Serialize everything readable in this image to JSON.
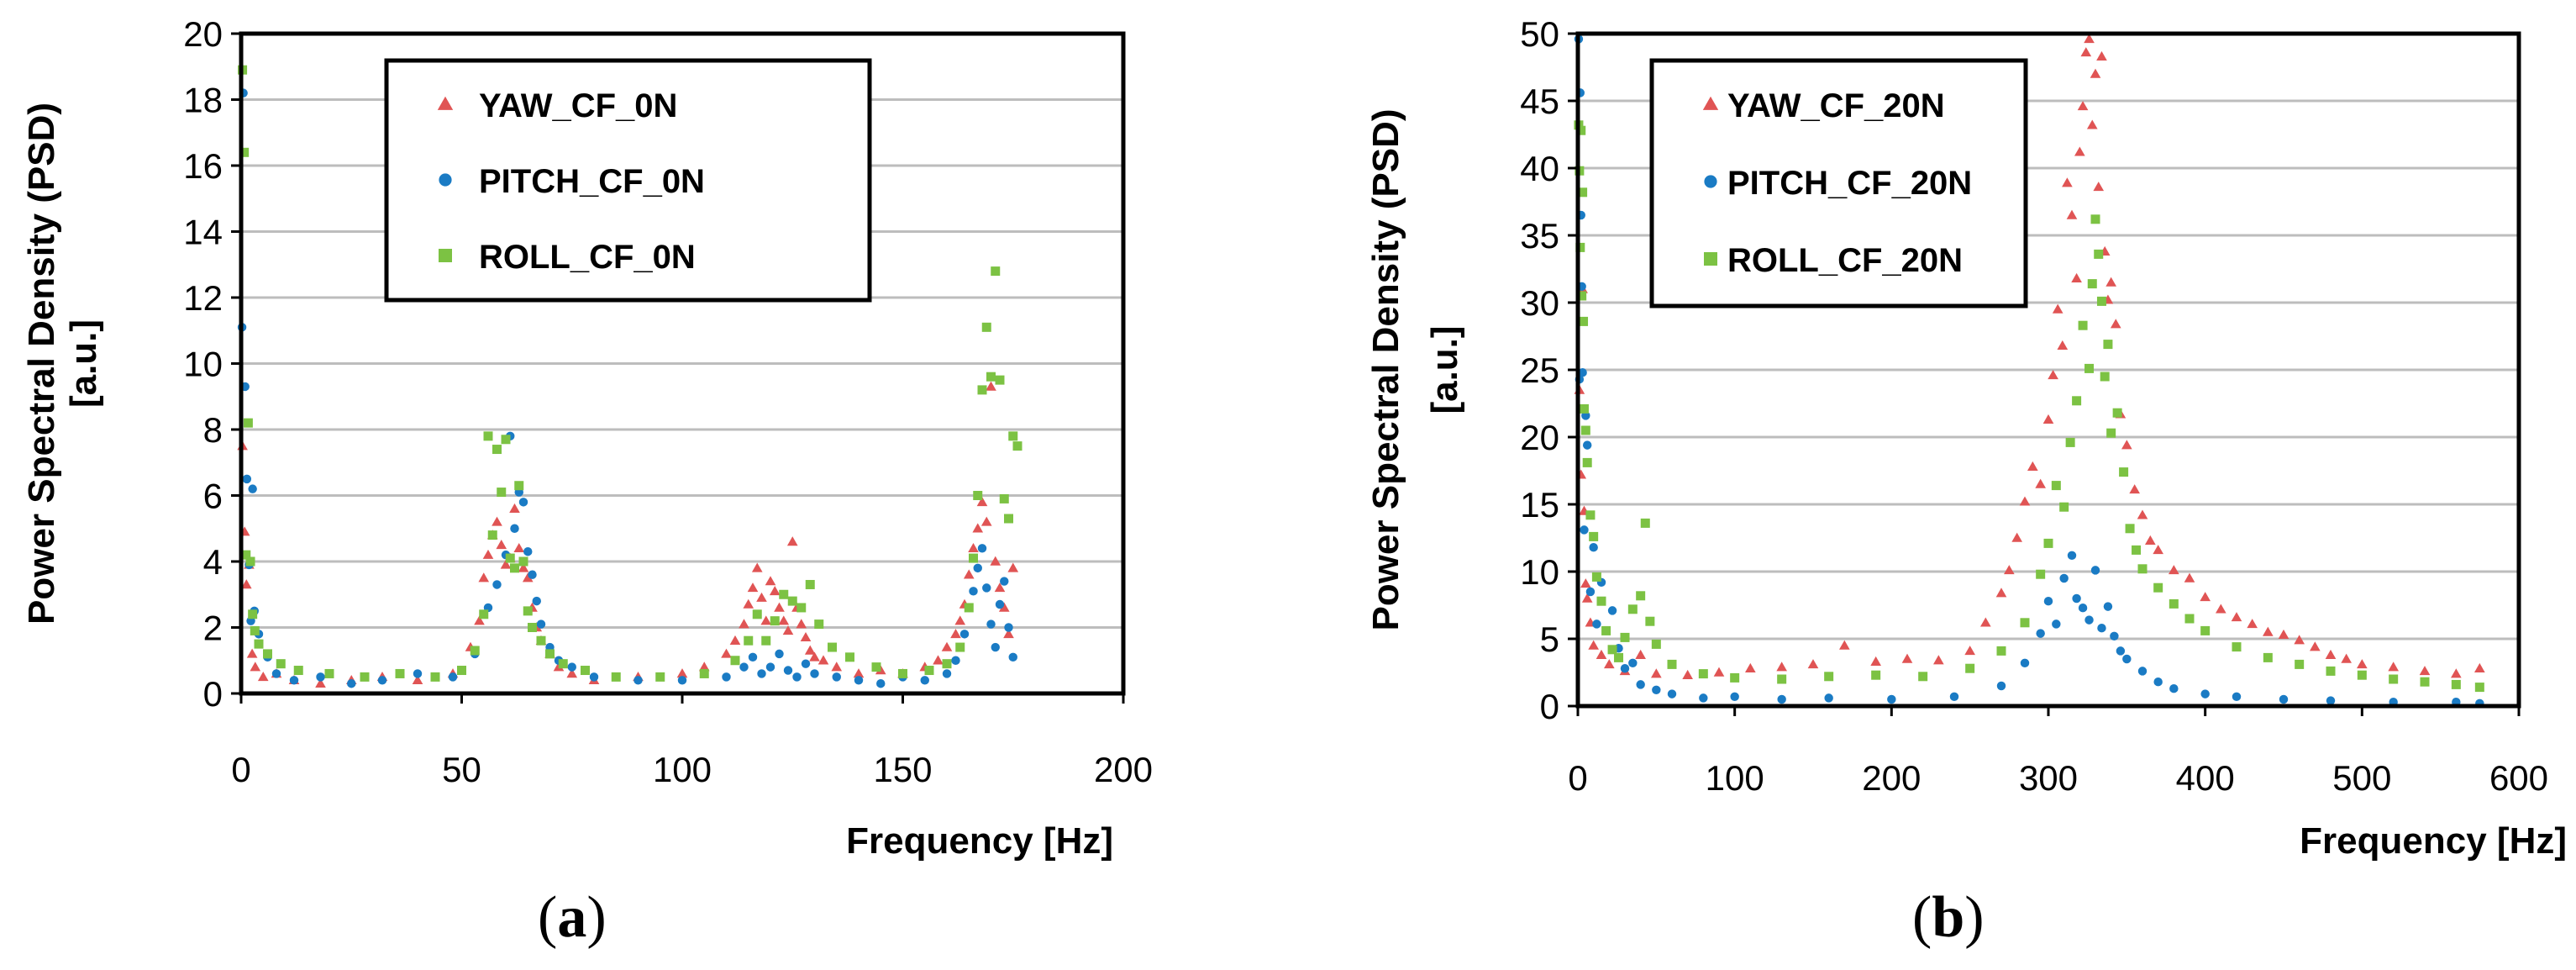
{
  "figure": {
    "panel_labels": [
      {
        "open": "(",
        "letter": "a",
        "close": ")"
      },
      {
        "open": "(",
        "letter": "b",
        "close": ")"
      }
    ]
  },
  "colors": {
    "yaw": "#e05454",
    "pitch": "#1a7bc4",
    "roll": "#7cc243",
    "grid": "#bdbdbd",
    "axis": "#000000"
  },
  "chart_data": [
    {
      "type": "scatter",
      "xlabel": "Frequency [Hz]",
      "ylabel_line1": "Power Spectral Density (PSD)",
      "ylabel_line2": "[a.u.]",
      "xlim": [
        0,
        200
      ],
      "ylim": [
        0,
        20
      ],
      "xticks": [
        0,
        50,
        100,
        150,
        200
      ],
      "yticks": [
        0,
        2,
        4,
        6,
        8,
        10,
        12,
        14,
        16,
        18,
        20
      ],
      "grid": true,
      "legend_position": "top-center",
      "series": [
        {
          "name": "YAW_CF_0N",
          "marker": "triangle",
          "color": "#e05454",
          "x": [
            0.3,
            0.8,
            1.2,
            1.8,
            2.5,
            3.2,
            5,
            8,
            12,
            18,
            25,
            32,
            40,
            48,
            52,
            54,
            55,
            56,
            57,
            58,
            59,
            60,
            61,
            62,
            63,
            64,
            65,
            66,
            67,
            68,
            70,
            72,
            75,
            80,
            90,
            100,
            105,
            110,
            112,
            114,
            115,
            116,
            117,
            118,
            119,
            120,
            121,
            122,
            123,
            124,
            125,
            126,
            127,
            128,
            129,
            130,
            132,
            135,
            140,
            145,
            150,
            155,
            158,
            160,
            162,
            163,
            164,
            165,
            166,
            167,
            168,
            169,
            170,
            171,
            172,
            173,
            174,
            175
          ],
          "y": [
            7.5,
            4.9,
            3.3,
            3.9,
            1.2,
            0.8,
            0.5,
            0.6,
            0.4,
            0.3,
            0.4,
            0.5,
            0.4,
            0.6,
            1.4,
            2.2,
            3.5,
            4.2,
            4.8,
            5.2,
            4.5,
            3.9,
            4.1,
            5.6,
            4.4,
            3.8,
            3.5,
            2.6,
            2.0,
            1.6,
            1.2,
            0.8,
            0.6,
            0.4,
            0.5,
            0.6,
            0.8,
            1.2,
            1.6,
            2.1,
            2.7,
            3.2,
            3.8,
            2.9,
            2.2,
            3.4,
            3.1,
            2.6,
            2.2,
            1.9,
            4.6,
            2.6,
            2.1,
            1.7,
            1.3,
            1.1,
            1.0,
            0.8,
            0.6,
            0.7,
            0.6,
            0.8,
            1.0,
            1.4,
            1.8,
            2.2,
            2.7,
            3.6,
            4.4,
            5.0,
            5.8,
            5.2,
            9.3,
            4.0,
            3.2,
            2.6,
            1.8,
            3.8
          ]
        },
        {
          "name": "PITCH_CF_0N",
          "marker": "circle",
          "color": "#1a7bc4",
          "x": [
            0.2,
            0.5,
            0.9,
            1.3,
            1.8,
            2.2,
            2.6,
            3,
            4,
            6,
            8,
            12,
            18,
            25,
            32,
            40,
            48,
            53,
            56,
            58,
            60,
            61,
            62,
            63,
            64,
            65,
            66,
            67,
            68,
            70,
            72,
            75,
            80,
            90,
            100,
            110,
            114,
            116,
            118,
            120,
            122,
            124,
            126,
            128,
            130,
            135,
            140,
            145,
            150,
            155,
            160,
            162,
            164,
            165,
            166,
            167,
            168,
            169,
            170,
            171,
            172,
            173,
            174,
            175
          ],
          "y": [
            11.1,
            18.2,
            9.3,
            6.5,
            3.9,
            2.2,
            6.2,
            2.5,
            1.8,
            1.1,
            0.6,
            0.4,
            0.5,
            0.3,
            0.4,
            0.6,
            0.5,
            1.2,
            2.6,
            3.3,
            4.2,
            7.8,
            5.0,
            6.1,
            5.8,
            4.3,
            3.6,
            2.8,
            2.1,
            1.4,
            1.0,
            0.8,
            0.5,
            0.4,
            0.4,
            0.5,
            0.8,
            1.1,
            0.6,
            0.8,
            1.2,
            0.7,
            0.5,
            0.9,
            0.6,
            0.5,
            0.4,
            0.3,
            0.5,
            0.4,
            0.6,
            1.0,
            1.8,
            2.6,
            3.1,
            3.8,
            4.4,
            3.2,
            2.1,
            1.4,
            2.7,
            3.4,
            2.0,
            1.1
          ]
        },
        {
          "name": "ROLL_CF_0N",
          "marker": "square",
          "color": "#7cc243",
          "x": [
            0.3,
            0.7,
            1.1,
            1.6,
            2.1,
            2.6,
            3.1,
            4,
            6,
            9,
            13,
            20,
            28,
            36,
            44,
            50,
            53,
            55,
            56,
            57,
            58,
            59,
            60,
            61,
            62,
            63,
            64,
            65,
            66,
            68,
            70,
            73,
            78,
            85,
            95,
            105,
            112,
            115,
            117,
            119,
            121,
            123,
            125,
            127,
            129,
            131,
            134,
            138,
            144,
            150,
            156,
            160,
            163,
            165,
            166,
            167,
            168,
            169,
            170,
            171,
            172,
            173,
            174,
            175,
            176
          ],
          "y": [
            18.9,
            16.4,
            4.2,
            8.2,
            4.0,
            2.4,
            1.9,
            1.5,
            1.2,
            0.9,
            0.7,
            0.6,
            0.5,
            0.6,
            0.5,
            0.7,
            1.3,
            2.4,
            7.8,
            4.8,
            7.4,
            6.1,
            7.7,
            4.1,
            3.8,
            6.3,
            4.0,
            2.5,
            2.0,
            1.6,
            1.2,
            0.9,
            0.7,
            0.5,
            0.5,
            0.6,
            1.0,
            1.6,
            2.4,
            1.6,
            2.2,
            3.0,
            2.8,
            2.6,
            3.3,
            2.1,
            1.4,
            1.1,
            0.8,
            0.6,
            0.7,
            0.9,
            1.4,
            2.6,
            4.1,
            6.0,
            9.2,
            11.1,
            9.6,
            12.8,
            9.5,
            5.9,
            5.3,
            7.8,
            7.5
          ]
        }
      ]
    },
    {
      "type": "scatter",
      "xlabel": "Frequency [Hz]",
      "ylabel_line1": "Power Spectral Density (PSD)",
      "ylabel_line2": "[a.u.]",
      "xlim": [
        0,
        600
      ],
      "ylim": [
        0,
        50
      ],
      "xticks": [
        0,
        100,
        200,
        300,
        400,
        500,
        600
      ],
      "yticks": [
        0,
        5,
        10,
        15,
        20,
        25,
        30,
        35,
        40,
        45,
        50
      ],
      "grid": true,
      "legend_position": "top-left",
      "series": [
        {
          "name": "YAW_CF_20N",
          "marker": "triangle",
          "color": "#e05454",
          "x": [
            1,
            2,
            3,
            4,
            5,
            6,
            8,
            10,
            15,
            20,
            30,
            40,
            50,
            70,
            90,
            110,
            130,
            150,
            170,
            190,
            210,
            230,
            250,
            260,
            270,
            275,
            280,
            285,
            290,
            295,
            300,
            303,
            306,
            309,
            312,
            315,
            318,
            320,
            322,
            324,
            326,
            328,
            330,
            332,
            334,
            336,
            338,
            340,
            343,
            346,
            350,
            355,
            360,
            365,
            370,
            380,
            390,
            400,
            410,
            420,
            430,
            440,
            450,
            460,
            470,
            480,
            490,
            500,
            520,
            540,
            560,
            575
          ],
          "y": [
            23.5,
            17.2,
            31.0,
            14.5,
            9.1,
            8.0,
            6.2,
            4.5,
            3.8,
            3.1,
            2.6,
            3.8,
            2.4,
            2.3,
            2.5,
            2.8,
            2.9,
            3.1,
            4.5,
            3.3,
            3.5,
            3.4,
            4.1,
            6.2,
            8.4,
            10.1,
            12.5,
            15.2,
            17.8,
            16.5,
            21.3,
            24.6,
            29.5,
            26.8,
            38.9,
            36.5,
            31.8,
            41.2,
            44.6,
            48.6,
            49.6,
            43.2,
            47.0,
            38.6,
            48.3,
            33.8,
            30.2,
            31.5,
            28.4,
            21.7,
            19.4,
            16.1,
            14.2,
            12.3,
            11.6,
            10.1,
            9.5,
            8.1,
            7.2,
            6.6,
            6.1,
            5.5,
            5.3,
            4.9,
            4.4,
            3.8,
            3.5,
            3.1,
            2.9,
            2.6,
            2.4,
            2.8
          ]
        },
        {
          "name": "PITCH_CF_20N",
          "marker": "circle",
          "color": "#1a7bc4",
          "x": [
            0.5,
            1,
            1.5,
            2,
            2.5,
            3,
            4,
            5,
            6,
            8,
            10,
            12,
            15,
            18,
            22,
            26,
            30,
            35,
            40,
            50,
            60,
            80,
            100,
            130,
            160,
            200,
            240,
            270,
            285,
            295,
            300,
            305,
            310,
            315,
            318,
            322,
            326,
            330,
            334,
            338,
            342,
            346,
            350,
            360,
            370,
            380,
            400,
            420,
            450,
            480,
            520,
            560,
            575
          ],
          "y": [
            49.6,
            24.3,
            45.6,
            36.5,
            31.2,
            24.8,
            13.1,
            21.6,
            19.4,
            8.5,
            11.8,
            6.1,
            9.2,
            5.6,
            7.1,
            4.3,
            2.8,
            3.2,
            1.6,
            1.2,
            0.9,
            0.6,
            0.7,
            0.5,
            0.6,
            0.5,
            0.7,
            1.5,
            3.2,
            5.4,
            7.8,
            6.1,
            9.5,
            11.2,
            8.0,
            7.3,
            6.4,
            10.1,
            5.8,
            7.4,
            5.2,
            4.1,
            3.5,
            2.6,
            1.8,
            1.3,
            0.9,
            0.7,
            0.5,
            0.4,
            0.3,
            0.3,
            0.2
          ]
        },
        {
          "name": "ROLL_CF_20N",
          "marker": "square",
          "color": "#7cc243",
          "x": [
            0.5,
            1,
            1.5,
            2,
            2.5,
            3,
            3.5,
            4,
            5,
            6,
            8,
            10,
            12,
            15,
            18,
            22,
            26,
            30,
            35,
            40,
            43,
            46,
            50,
            60,
            80,
            100,
            130,
            160,
            190,
            220,
            250,
            270,
            285,
            295,
            300,
            305,
            310,
            314,
            318,
            322,
            326,
            328,
            330,
            332,
            334,
            336,
            338,
            340,
            344,
            348,
            352,
            356,
            360,
            370,
            380,
            390,
            400,
            420,
            440,
            460,
            480,
            500,
            520,
            540,
            560,
            575
          ],
          "y": [
            43.2,
            39.8,
            34.1,
            42.8,
            30.5,
            38.2,
            28.6,
            22.1,
            20.5,
            18.1,
            14.2,
            12.6,
            9.6,
            7.8,
            5.6,
            4.2,
            3.6,
            5.1,
            7.2,
            8.2,
            13.6,
            6.3,
            4.6,
            3.1,
            2.4,
            2.1,
            2.0,
            2.2,
            2.3,
            2.2,
            2.8,
            4.1,
            6.2,
            9.8,
            12.1,
            16.4,
            14.8,
            19.6,
            22.7,
            28.3,
            25.1,
            31.4,
            36.2,
            33.6,
            30.1,
            24.5,
            26.9,
            20.3,
            21.8,
            17.4,
            13.2,
            11.6,
            10.2,
            8.8,
            7.6,
            6.5,
            5.6,
            4.4,
            3.6,
            3.1,
            2.6,
            2.3,
            2.0,
            1.8,
            1.6,
            1.4
          ]
        }
      ]
    }
  ]
}
